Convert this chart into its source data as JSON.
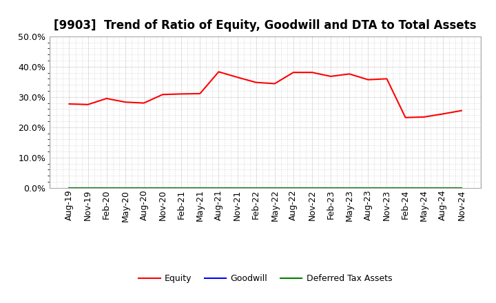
{
  "title": "[9903]  Trend of Ratio of Equity, Goodwill and DTA to Total Assets",
  "x_labels": [
    "Aug-19",
    "Nov-19",
    "Feb-20",
    "May-20",
    "Aug-20",
    "Nov-20",
    "Feb-21",
    "May-21",
    "Aug-21",
    "Nov-21",
    "Feb-22",
    "May-22",
    "Aug-22",
    "Nov-22",
    "Feb-23",
    "May-23",
    "Aug-23",
    "Nov-23",
    "Feb-24",
    "May-24",
    "Aug-24",
    "Nov-24"
  ],
  "equity": [
    0.277,
    0.275,
    0.295,
    0.283,
    0.28,
    0.308,
    0.31,
    0.311,
    0.383,
    0.365,
    0.348,
    0.344,
    0.381,
    0.381,
    0.368,
    0.376,
    0.357,
    0.36,
    0.232,
    0.234,
    0.244,
    0.255
  ],
  "goodwill": [
    0.0,
    0.0,
    0.0,
    0.0,
    0.0,
    0.0,
    0.0,
    0.0,
    0.0,
    0.0,
    0.0,
    0.0,
    0.0,
    0.0,
    0.0,
    0.0,
    0.0,
    0.0,
    0.0,
    0.0,
    0.0,
    0.0
  ],
  "dta": [
    0.0,
    0.0,
    0.0,
    0.0,
    0.0,
    0.0,
    0.0,
    0.0,
    0.0,
    0.0,
    0.0,
    0.0,
    0.0,
    0.0,
    0.0,
    0.0,
    0.0,
    0.0,
    0.0,
    0.0,
    0.0,
    0.0
  ],
  "equity_color": "#FF0000",
  "goodwill_color": "#0000FF",
  "dta_color": "#008000",
  "ylim": [
    0.0,
    0.5
  ],
  "yticks": [
    0.0,
    0.1,
    0.2,
    0.3,
    0.4,
    0.5
  ],
  "bg_color": "#FFFFFF",
  "plot_bg_color": "#FFFFFF",
  "grid_color": "#999999",
  "title_fontsize": 12,
  "tick_fontsize": 9,
  "legend_labels": [
    "Equity",
    "Goodwill",
    "Deferred Tax Assets"
  ]
}
